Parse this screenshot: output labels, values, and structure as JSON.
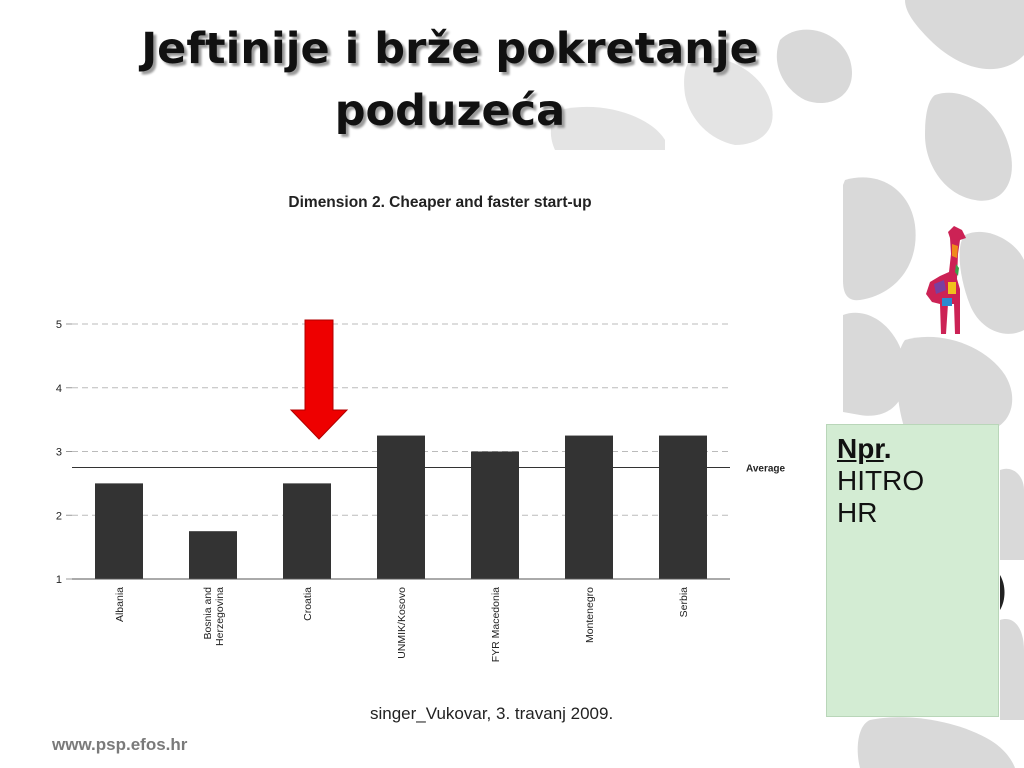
{
  "slide": {
    "title_line1": "Jeftinije i brže pokretanje",
    "title_line2": "poduzeća",
    "footer_credit": "singer_Vukovar, 3. travanj 2009.",
    "footer_url": "www.psp.efos.hr"
  },
  "note": {
    "npr_label": "Npr",
    "npr_dot": ".",
    "line1": "HITRO",
    "line2": "HR"
  },
  "colors": {
    "bar": "#333333",
    "arrow": "#ee0000",
    "note_bg": "#d3ecd3",
    "background_shapes": "#d9d9d9"
  },
  "chart_data": {
    "type": "bar",
    "title": "Dimension 2.  Cheaper and faster start-up",
    "categories": [
      "Albania",
      "Bosnia and Herzegovina",
      "Croatia",
      "UNMIK/Kosovo",
      "FYR Macedonia",
      "Montenegro",
      "Serbia"
    ],
    "category_lines": [
      [
        "Albania"
      ],
      [
        "Bosnia and",
        "Herzegovina"
      ],
      [
        "Croatia"
      ],
      [
        "UNMIK/Kosovo"
      ],
      [
        "FYR Macedonia"
      ],
      [
        "Montenegro"
      ],
      [
        "Serbia"
      ]
    ],
    "values": [
      2.5,
      1.75,
      2.5,
      3.25,
      3.0,
      3.25,
      3.25
    ],
    "ylim": [
      1,
      5
    ],
    "yticks": [
      "1",
      "2",
      "3",
      "4",
      "5"
    ],
    "average": {
      "label": "Average",
      "value": 2.75
    },
    "highlight_category": "Croatia",
    "grid": true
  }
}
